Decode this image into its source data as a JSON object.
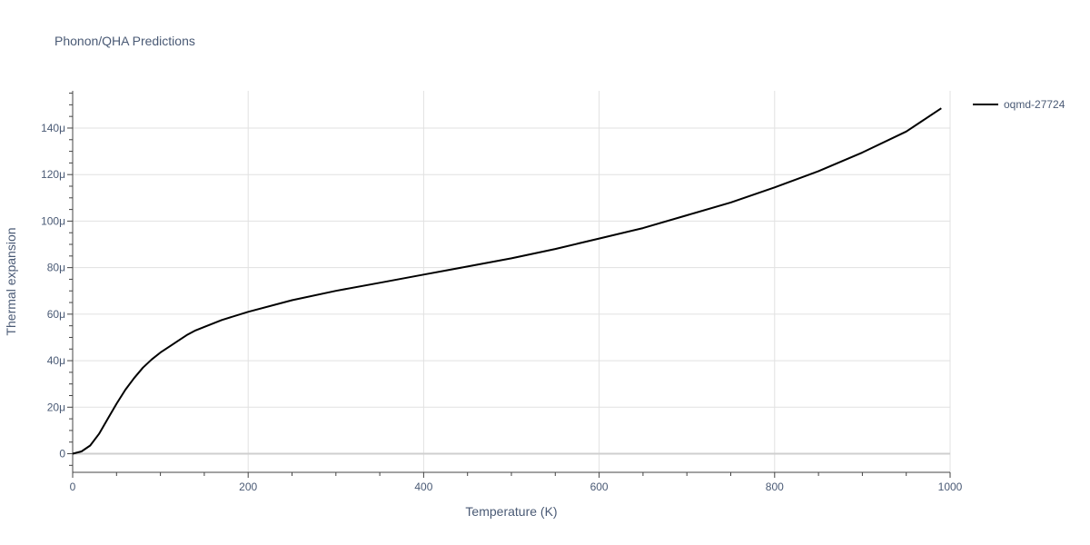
{
  "chart_data": {
    "type": "line",
    "title": "Phonon/QHA Predictions",
    "xlabel": "Temperature (K)",
    "ylabel": "Thermal expansion",
    "xlim": [
      0,
      1000
    ],
    "ylim": [
      -8,
      156
    ],
    "x_ticks": [
      0,
      200,
      400,
      600,
      800,
      1000
    ],
    "x_tick_labels": [
      "0",
      "200",
      "400",
      "600",
      "800",
      "1000"
    ],
    "y_ticks": [
      0,
      20,
      40,
      60,
      80,
      100,
      120,
      140
    ],
    "y_tick_labels": [
      "0",
      "20μ",
      "40μ",
      "60μ",
      "80μ",
      "100μ",
      "120μ",
      "140μ"
    ],
    "grid": true,
    "legend_position": "top-right",
    "series": [
      {
        "name": "oqmd-27724",
        "color": "#000000",
        "x": [
          0,
          10,
          20,
          30,
          40,
          50,
          60,
          70,
          80,
          90,
          100,
          110,
          120,
          130,
          140,
          150,
          170,
          200,
          250,
          300,
          350,
          400,
          450,
          500,
          550,
          600,
          650,
          700,
          750,
          800,
          850,
          900,
          950,
          990
        ],
        "y": [
          0,
          1,
          3.5,
          8.5,
          15,
          21.5,
          27.5,
          32.5,
          37,
          40.5,
          43.5,
          46,
          48.5,
          51,
          53,
          54.5,
          57.5,
          61,
          66,
          70,
          73.5,
          77,
          80.5,
          84,
          88,
          92.5,
          97,
          102.5,
          108,
          114.5,
          121.5,
          129.5,
          138.5,
          148.5
        ]
      }
    ]
  }
}
